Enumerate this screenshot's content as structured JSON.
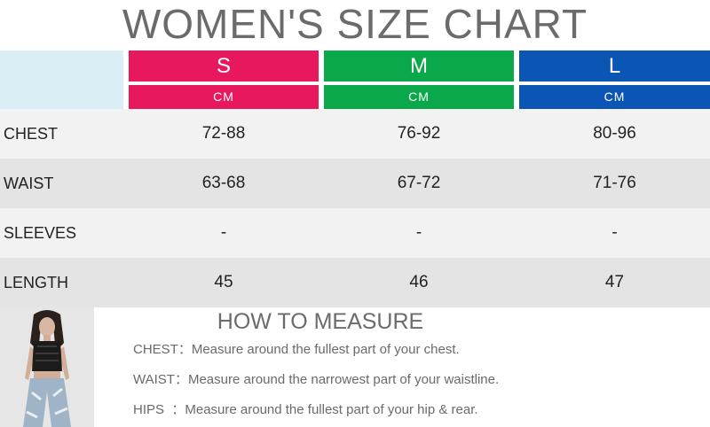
{
  "title": "WOMEN'S SIZE CHART",
  "sizes": [
    {
      "label": "S",
      "unit": "CM",
      "color": "#e8185f"
    },
    {
      "label": "M",
      "unit": "CM",
      "color": "#0aa84a"
    },
    {
      "label": "L",
      "unit": "CM",
      "color": "#0b56b5"
    }
  ],
  "rows": [
    {
      "label": "CHEST",
      "values": [
        "72-88",
        "76-92",
        "80-96"
      ]
    },
    {
      "label": "WAIST",
      "values": [
        "63-68",
        "67-72",
        "71-76"
      ]
    },
    {
      "label": "SLEEVES",
      "values": [
        "-",
        "-",
        "-"
      ]
    },
    {
      "label": "LENGTH",
      "values": [
        "45",
        "46",
        "47"
      ]
    }
  ],
  "how_to_measure": {
    "title": "HOW TO MEASURE",
    "items": [
      {
        "key": "CHEST：",
        "text": "Measure around the fullest part of your chest."
      },
      {
        "key": "WAIST：",
        "text": "Measure around the narrowest part of your waistline."
      },
      {
        "key": "HIPS  ：",
        "text": "Measure around the fullest part of your hip & rear."
      }
    ]
  },
  "row_colors": [
    "#f2f2f2",
    "#e4e4e4",
    "#f2f2f2",
    "#e4e4e4"
  ]
}
